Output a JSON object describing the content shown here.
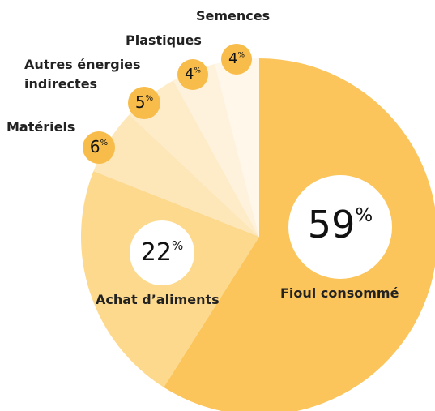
{
  "chart_data": {
    "type": "pie",
    "categories": [
      "Fioul consommé",
      "Achat d’aliments",
      "Matériels",
      "Autres énergies indirectes",
      "Plastiques",
      "Semences"
    ],
    "values": [
      59,
      22,
      6,
      5,
      4,
      4
    ],
    "value_labels": [
      "59%",
      "22%",
      "6%",
      "5%",
      "4%",
      "4%"
    ],
    "colors": [
      "#fbc55c",
      "#fdd98e",
      "#fde6b8",
      "#feecc9",
      "#fef2dc",
      "#fff7ea"
    ]
  }
}
